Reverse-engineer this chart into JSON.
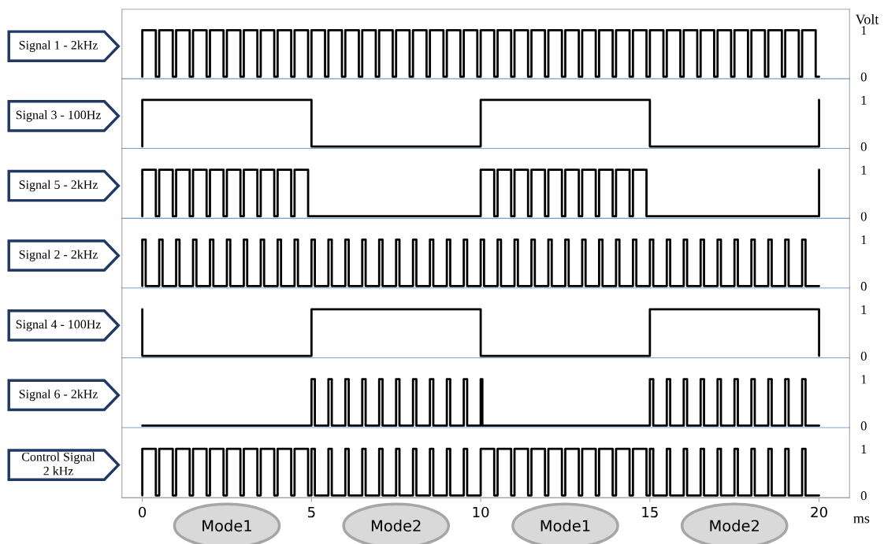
{
  "chart_data": [
    {
      "type": "step",
      "title": "Signal 1 - 2kHz",
      "ylabel": "Volt",
      "color": "#000000",
      "xlim": [
        -0.6,
        20.9
      ],
      "ylim": [
        -0.05,
        1.45
      ],
      "yticks": [
        0,
        1
      ],
      "tick_labels": "y",
      "x": [
        0,
        0,
        0.4,
        0.5,
        0.9,
        1,
        1.4,
        1.5,
        1.9,
        2,
        2.4,
        2.5,
        2.9,
        3,
        3.4,
        3.5,
        3.9,
        4,
        4.4,
        4.5,
        4.9,
        5,
        5.4,
        5.5,
        5.9,
        6,
        6.4,
        6.5,
        6.9,
        7,
        7.4,
        7.5,
        7.9,
        8,
        8.4,
        8.5,
        8.9,
        9,
        9.4,
        9.5,
        9.9,
        10,
        10.4,
        10.5,
        10.9,
        11,
        11.4,
        11.5,
        11.9,
        12,
        12.4,
        12.5,
        12.9,
        13,
        13.4,
        13.5,
        13.9,
        14,
        14.4,
        14.5,
        14.9,
        15,
        15.4,
        15.5,
        15.9,
        16,
        16.4,
        16.5,
        16.9,
        17,
        17.4,
        17.5,
        17.9,
        18,
        18.4,
        18.5,
        18.9,
        19,
        19.4,
        19.5,
        19.9,
        20
      ],
      "values": [
        0,
        1,
        0,
        1,
        0,
        1,
        0,
        1,
        0,
        1,
        0,
        1,
        0,
        1,
        0,
        1,
        0,
        1,
        0,
        1,
        0,
        1,
        0,
        1,
        0,
        1,
        0,
        1,
        0,
        1,
        0,
        1,
        0,
        1,
        0,
        1,
        0,
        1,
        0,
        1,
        0,
        1,
        0,
        1,
        0,
        1,
        0,
        1,
        0,
        1,
        0,
        1,
        0,
        1,
        0,
        1,
        0,
        1,
        0,
        1,
        0,
        1,
        0,
        1,
        0,
        1,
        0,
        1,
        0,
        1,
        0,
        1,
        0,
        1,
        0,
        1,
        0,
        1,
        0,
        1,
        0,
        0
      ]
    },
    {
      "type": "step",
      "title": "Signal 3 - 100Hz",
      "color": "#000000",
      "xlim": [
        -0.6,
        20.9
      ],
      "ylim": [
        -0.05,
        1.45
      ],
      "yticks": [
        0,
        1
      ],
      "tick_labels": "y",
      "x": [
        0,
        0,
        5,
        10,
        15,
        20
      ],
      "values": [
        0,
        1,
        0,
        1,
        0,
        1
      ]
    },
    {
      "type": "step",
      "title": "Signal 5 - 2kHz",
      "color": "#000000",
      "xlim": [
        -0.6,
        20.9
      ],
      "ylim": [
        -0.05,
        1.45
      ],
      "yticks": [
        0,
        1
      ],
      "tick_labels": "y",
      "x": [
        0,
        0,
        0.4,
        0.5,
        0.9,
        1,
        1.4,
        1.5,
        1.9,
        2,
        2.4,
        2.5,
        2.9,
        3,
        3.4,
        3.5,
        3.9,
        4,
        4.4,
        4.5,
        4.9,
        10,
        10.4,
        10.5,
        10.9,
        11,
        11.4,
        11.5,
        11.9,
        12,
        12.4,
        12.5,
        12.9,
        13,
        13.4,
        13.5,
        13.9,
        14,
        14.4,
        14.5,
        14.9,
        20
      ],
      "values": [
        0,
        1,
        0,
        1,
        0,
        1,
        0,
        1,
        0,
        1,
        0,
        1,
        0,
        1,
        0,
        1,
        0,
        1,
        0,
        1,
        0,
        1,
        0,
        1,
        0,
        1,
        0,
        1,
        0,
        1,
        0,
        1,
        0,
        1,
        0,
        1,
        0,
        1,
        0,
        1,
        0,
        1
      ]
    },
    {
      "type": "step",
      "title": "Signal 2 - 2kHz",
      "color": "#000000",
      "xlim": [
        -0.6,
        20.9
      ],
      "ylim": [
        -0.05,
        1.45
      ],
      "yticks": [
        0,
        1
      ],
      "tick_labels": "y",
      "x": [
        0,
        0,
        0.1,
        0.5,
        0.6,
        1,
        1.1,
        1.5,
        1.6,
        2,
        2.1,
        2.5,
        2.6,
        3,
        3.1,
        3.5,
        3.6,
        4,
        4.1,
        4.5,
        4.6,
        5,
        5.1,
        5.5,
        5.6,
        6,
        6.1,
        6.5,
        6.6,
        7,
        7.1,
        7.5,
        7.6,
        8,
        8.1,
        8.5,
        8.6,
        9,
        9.1,
        9.5,
        9.6,
        10,
        10.1,
        10.5,
        10.6,
        11,
        11.1,
        11.5,
        11.6,
        12,
        12.1,
        12.5,
        12.6,
        13,
        13.1,
        13.5,
        13.6,
        14,
        14.1,
        14.5,
        14.6,
        15,
        15.1,
        15.5,
        15.6,
        16,
        16.1,
        16.5,
        16.6,
        17,
        17.1,
        17.5,
        17.6,
        18,
        18.1,
        18.5,
        18.6,
        19,
        19.1,
        19.5,
        19.6,
        20
      ],
      "values": [
        0,
        1,
        0,
        1,
        0,
        1,
        0,
        1,
        0,
        1,
        0,
        1,
        0,
        1,
        0,
        1,
        0,
        1,
        0,
        1,
        0,
        1,
        0,
        1,
        0,
        1,
        0,
        1,
        0,
        1,
        0,
        1,
        0,
        1,
        0,
        1,
        0,
        1,
        0,
        1,
        0,
        1,
        0,
        1,
        0,
        1,
        0,
        1,
        0,
        1,
        0,
        1,
        0,
        1,
        0,
        1,
        0,
        1,
        0,
        1,
        0,
        1,
        0,
        1,
        0,
        1,
        0,
        1,
        0,
        1,
        0,
        1,
        0,
        1,
        0,
        1,
        0,
        1,
        0,
        1,
        0,
        0
      ]
    },
    {
      "type": "step",
      "title": "Signal 4 - 100Hz",
      "color": "#000000",
      "xlim": [
        -0.6,
        20.9
      ],
      "ylim": [
        -0.05,
        1.45
      ],
      "yticks": [
        0,
        1
      ],
      "tick_labels": "y",
      "x": [
        0,
        0,
        5,
        10,
        15,
        20
      ],
      "values": [
        1,
        0,
        1,
        0,
        1,
        0
      ]
    },
    {
      "type": "step",
      "title": "Signal 6 - 2kHz",
      "color": "#000000",
      "xlim": [
        -0.6,
        20.9
      ],
      "ylim": [
        -0.05,
        1.45
      ],
      "yticks": [
        0,
        1
      ],
      "tick_labels": "y",
      "x": [
        0,
        5,
        5.1,
        5.5,
        5.6,
        6,
        6.1,
        6.5,
        6.6,
        7,
        7.1,
        7.5,
        7.6,
        8,
        8.1,
        8.5,
        8.6,
        9,
        9.1,
        9.5,
        9.6,
        10,
        10.05,
        15,
        15.1,
        15.5,
        15.6,
        16,
        16.1,
        16.5,
        16.6,
        17,
        17.1,
        17.5,
        17.6,
        18,
        18.1,
        18.5,
        18.6,
        19,
        19.1,
        19.5,
        19.6,
        20
      ],
      "values": [
        0,
        1,
        0,
        1,
        0,
        1,
        0,
        1,
        0,
        1,
        0,
        1,
        0,
        1,
        0,
        1,
        0,
        1,
        0,
        1,
        0,
        1,
        0,
        1,
        0,
        1,
        0,
        1,
        0,
        1,
        0,
        1,
        0,
        1,
        0,
        1,
        0,
        1,
        0,
        1,
        0,
        1,
        0,
        0
      ]
    },
    {
      "type": "step",
      "title": "Control Signal\n2 kHz",
      "xlabel": "ms",
      "color": "#000000",
      "xlim": [
        -0.6,
        20.9
      ],
      "xticks": [
        0,
        5,
        10,
        15,
        20
      ],
      "ylim": [
        -0.05,
        1.45
      ],
      "yticks": [
        0,
        1
      ],
      "annotations": [
        "Mode1",
        "Mode2",
        "Mode1",
        "Mode2"
      ],
      "x": [
        0,
        0,
        0.4,
        0.5,
        0.9,
        1,
        1.4,
        1.5,
        1.9,
        2,
        2.4,
        2.5,
        2.9,
        3,
        3.4,
        3.5,
        3.9,
        4,
        4.4,
        4.5,
        4.9,
        5,
        5.1,
        5.5,
        5.6,
        6,
        6.1,
        6.5,
        6.6,
        7,
        7.1,
        7.5,
        7.6,
        8,
        8.1,
        8.5,
        8.6,
        9,
        9.1,
        9.5,
        9.6,
        10,
        10.4,
        10.5,
        10.9,
        11,
        11.4,
        11.5,
        11.9,
        12,
        12.4,
        12.5,
        12.9,
        13,
        13.4,
        13.5,
        13.9,
        14,
        14.4,
        14.5,
        14.9,
        15,
        15.1,
        15.5,
        15.6,
        16,
        16.1,
        16.5,
        16.6,
        17,
        17.1,
        17.5,
        17.6,
        18,
        18.1,
        18.5,
        18.6,
        19,
        19.1,
        19.5,
        19.6,
        20
      ],
      "values": [
        0,
        1,
        0,
        1,
        0,
        1,
        0,
        1,
        0,
        1,
        0,
        1,
        0,
        1,
        0,
        1,
        0,
        1,
        0,
        1,
        0,
        1,
        0,
        1,
        0,
        1,
        0,
        1,
        0,
        1,
        0,
        1,
        0,
        1,
        0,
        1,
        0,
        1,
        0,
        1,
        0,
        1,
        0,
        1,
        0,
        1,
        0,
        1,
        0,
        1,
        0,
        1,
        0,
        1,
        0,
        1,
        0,
        1,
        0,
        1,
        0,
        1,
        0,
        1,
        0,
        1,
        0,
        1,
        0,
        1,
        0,
        1,
        0,
        1,
        0,
        1,
        0,
        1,
        0,
        1,
        0,
        0
      ]
    }
  ]
}
